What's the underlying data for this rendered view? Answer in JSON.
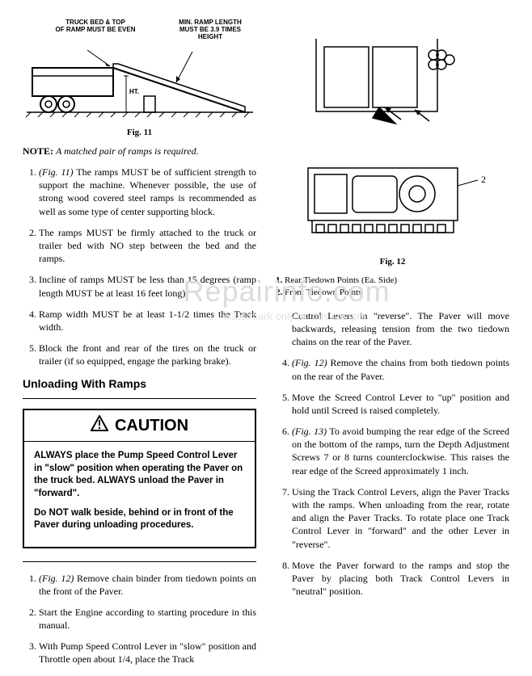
{
  "watermark": {
    "main": "Repairinfo.com",
    "sub": "watermark only on this sample"
  },
  "left": {
    "fig11": {
      "caption": "Fig. 11",
      "label_left": "TRUCK BED & TOP\nOF RAMP MUST BE EVEN",
      "label_right": "MIN. RAMP LENGTH\nMUST BE 3.9 TIMES\nHEIGHT",
      "label_ht": "HT."
    },
    "note": {
      "label": "NOTE:",
      "text": "A matched pair of ramps is required."
    },
    "list1": [
      {
        "ref": "(Fig. 11)",
        "text": "The ramps MUST be of sufficient strength to support the machine. Whenever possible, the use of strong wood covered steel ramps is recommended as well as some type of center supporting block."
      },
      {
        "text": "The ramps MUST be firmly attached to the truck or trailer bed with NO step between the bed and the ramps."
      },
      {
        "text": "Incline of ramps MUST be less than 15 degrees (ramp length MUST be at least 16 feet long)."
      },
      {
        "text": "Ramp width MUST be at least 1-1/2 times the Track width."
      },
      {
        "text": "Block the front and rear of the tires on the truck or trailer (if so equipped, engage the parking brake)."
      }
    ],
    "section": "Unloading With Ramps",
    "caution": {
      "head": "CAUTION",
      "p1": "ALWAYS place the Pump Speed Control Lever in \"slow\" position when operating the Paver on the truck bed. ALWAYS unload the Paver in \"forward\".",
      "p2": "Do NOT walk beside, behind or in front of the Paver during unloading procedures."
    },
    "list2": [
      {
        "ref": "(Fig. 12)",
        "text": "Remove chain binder from tiedown points on the front of the Paver."
      },
      {
        "text": "Start the Engine according to starting procedure in this manual."
      },
      {
        "text": "With Pump Speed Control Lever in \"slow\" position and Throttle open about 1/4, place the Track"
      }
    ]
  },
  "right": {
    "fig12": {
      "caption": "Fig. 12",
      "callout2": "2"
    },
    "key": {
      "k1": {
        "num": "1.",
        "text": "Rear Tiedown Points (Ea. Side)"
      },
      "k2": {
        "num": "2.",
        "text": "Front Tiedown Points"
      }
    },
    "cont3": "Control Levers in \"reverse\". The Paver will move backwards, releasing tension from the two tiedown chains on the rear of the Paver.",
    "list3": [
      {
        "ref": "(Fig. 12)",
        "text": "Remove the chains from both tiedown points on the rear of the Paver."
      },
      {
        "text": "Move the Screed Control Lever to \"up\" position and hold until Screed is raised completely."
      },
      {
        "ref": "(Fig. 13)",
        "text": "To avoid bumping the rear edge of the Screed on the bottom of the ramps, turn the Depth Adjustment Screws 7 or 8 turns counterclockwise. This raises the rear edge of the Screed approximately 1 inch."
      },
      {
        "text": "Using the Track Control Levers, align the Paver Tracks with the ramps. When unloading from the rear, rotate and align the Paver Tracks. To rotate place one Track Control Lever in \"forward\" and the other Lever in \"reverse\"."
      },
      {
        "text": "Move the Paver forward to the ramps and stop the Paver by placing both Track Control Levers in \"neutral\" position."
      }
    ]
  },
  "colors": {
    "text": "#000000",
    "bg": "#ffffff",
    "wm": "#dcdcdc"
  }
}
